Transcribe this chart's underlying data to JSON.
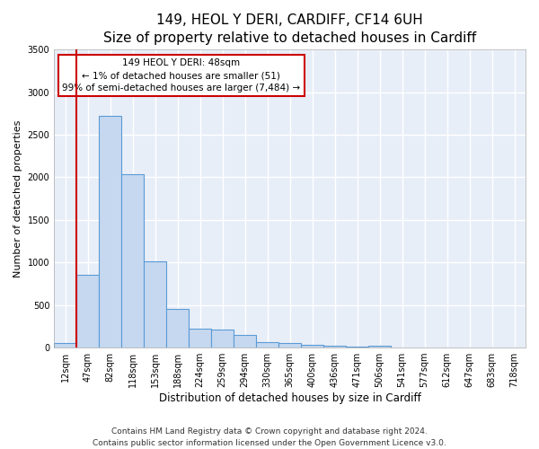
{
  "title": "149, HEOL Y DERI, CARDIFF, CF14 6UH",
  "subtitle": "Size of property relative to detached houses in Cardiff",
  "xlabel": "Distribution of detached houses by size in Cardiff",
  "ylabel": "Number of detached properties",
  "bar_color": "#c5d8f0",
  "bar_edge_color": "#5b9bd5",
  "background_color": "#e8eef8",
  "grid_color": "#ffffff",
  "annotation_text": "149 HEOL Y DERI: 48sqm\n← 1% of detached houses are smaller (51)\n99% of semi-detached houses are larger (7,484) →",
  "vline_color": "#cc0000",
  "categories": [
    "12sqm",
    "47sqm",
    "82sqm",
    "118sqm",
    "153sqm",
    "188sqm",
    "224sqm",
    "259sqm",
    "294sqm",
    "330sqm",
    "365sqm",
    "400sqm",
    "436sqm",
    "471sqm",
    "506sqm",
    "541sqm",
    "577sqm",
    "612sqm",
    "647sqm",
    "683sqm",
    "718sqm"
  ],
  "values": [
    55,
    850,
    2720,
    2040,
    1010,
    450,
    220,
    215,
    145,
    60,
    55,
    30,
    20,
    15,
    20,
    5,
    5,
    5,
    5,
    5,
    5
  ],
  "ylim": [
    0,
    3500
  ],
  "yticks": [
    0,
    500,
    1000,
    1500,
    2000,
    2500,
    3000,
    3500
  ],
  "vline_index": 1,
  "footer": "Contains HM Land Registry data © Crown copyright and database right 2024.\nContains public sector information licensed under the Open Government Licence v3.0.",
  "title_fontsize": 11,
  "xlabel_fontsize": 8.5,
  "ylabel_fontsize": 8,
  "tick_fontsize": 7,
  "footer_fontsize": 6.5
}
